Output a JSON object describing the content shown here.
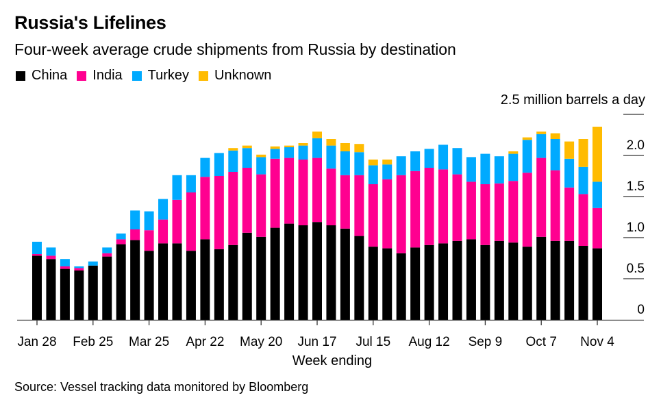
{
  "chart_data": {
    "type": "bar",
    "stacked": true,
    "title": "Russia's Lifelines",
    "subtitle": "Four-week average crude shipments from Russia by destination",
    "ylabel": "2.5 million barrels a day",
    "xlabel": "Week ending",
    "source": "Source: Vessel tracking data monitored by Bloomberg",
    "ylim": [
      0,
      2.5
    ],
    "yticks": [
      {
        "value": 2.5,
        "label": ""
      },
      {
        "value": 2.0,
        "label": "2.0"
      },
      {
        "value": 1.5,
        "label": "1.5"
      },
      {
        "value": 1.0,
        "label": "1.0"
      },
      {
        "value": 0.5,
        "label": "0.5"
      },
      {
        "value": 0,
        "label": "0"
      }
    ],
    "xtick_labels": [
      {
        "index": 0,
        "label": "Jan 28"
      },
      {
        "index": 4,
        "label": "Feb 25"
      },
      {
        "index": 8,
        "label": "Mar 25"
      },
      {
        "index": 12,
        "label": "Apr 22"
      },
      {
        "index": 16,
        "label": "May 20"
      },
      {
        "index": 20,
        "label": "Jun 17"
      },
      {
        "index": 24,
        "label": "Jul 15"
      },
      {
        "index": 28,
        "label": "Aug 12"
      },
      {
        "index": 32,
        "label": "Sep 9"
      },
      {
        "index": 36,
        "label": "Oct 7"
      },
      {
        "index": 40,
        "label": "Nov 4"
      }
    ],
    "grid": false,
    "legend_position": "top-left",
    "categories": [
      "Jan 28",
      "Feb 4",
      "Feb 11",
      "Feb 18",
      "Feb 25",
      "Mar 4",
      "Mar 11",
      "Mar 18",
      "Mar 25",
      "Apr 1",
      "Apr 8",
      "Apr 15",
      "Apr 22",
      "Apr 29",
      "May 6",
      "May 13",
      "May 20",
      "May 27",
      "Jun 3",
      "Jun 10",
      "Jun 17",
      "Jun 24",
      "Jul 1",
      "Jul 8",
      "Jul 15",
      "Jul 22",
      "Jul 29",
      "Aug 5",
      "Aug 12",
      "Aug 19",
      "Aug 26",
      "Sep 2",
      "Sep 9",
      "Sep 16",
      "Sep 23",
      "Sep 30",
      "Oct 7",
      "Oct 14",
      "Oct 21",
      "Oct 28",
      "Nov 4"
    ],
    "series": [
      {
        "name": "China",
        "color": "#000000",
        "values": [
          0.78,
          0.74,
          0.62,
          0.6,
          0.66,
          0.77,
          0.92,
          0.97,
          0.84,
          0.93,
          0.93,
          0.84,
          0.98,
          0.86,
          0.91,
          1.06,
          1.01,
          1.12,
          1.17,
          1.15,
          1.19,
          1.15,
          1.11,
          1.02,
          0.89,
          0.87,
          0.81,
          0.88,
          0.91,
          0.93,
          0.96,
          0.98,
          0.91,
          0.96,
          0.94,
          0.89,
          1.01,
          0.96,
          0.96,
          0.9,
          0.87
        ]
      },
      {
        "name": "India",
        "color": "#ff0090",
        "values": [
          0.02,
          0.04,
          0.03,
          0.03,
          0.0,
          0.04,
          0.06,
          0.13,
          0.25,
          0.29,
          0.53,
          0.71,
          0.76,
          0.89,
          0.89,
          0.79,
          0.76,
          0.84,
          0.8,
          0.8,
          0.78,
          0.69,
          0.65,
          0.74,
          0.76,
          0.84,
          0.95,
          0.93,
          0.94,
          0.9,
          0.81,
          0.7,
          0.74,
          0.7,
          0.75,
          0.9,
          0.96,
          0.86,
          0.65,
          0.63,
          0.49
        ]
      },
      {
        "name": "Turkey",
        "color": "#00aaff",
        "values": [
          0.15,
          0.1,
          0.09,
          0.02,
          0.05,
          0.07,
          0.07,
          0.23,
          0.23,
          0.25,
          0.3,
          0.21,
          0.23,
          0.28,
          0.26,
          0.24,
          0.21,
          0.12,
          0.13,
          0.17,
          0.24,
          0.28,
          0.29,
          0.28,
          0.23,
          0.18,
          0.23,
          0.24,
          0.23,
          0.3,
          0.32,
          0.3,
          0.37,
          0.33,
          0.33,
          0.4,
          0.29,
          0.38,
          0.35,
          0.33,
          0.32
        ]
      },
      {
        "name": "Unknown",
        "color": "#ffbb00",
        "values": [
          0,
          0,
          0,
          0,
          0,
          0,
          0,
          0,
          0,
          0,
          0,
          0,
          0,
          0,
          0.03,
          0.03,
          0.03,
          0.03,
          0.02,
          0.03,
          0.08,
          0.08,
          0.1,
          0.1,
          0.07,
          0.06,
          0,
          0,
          0,
          0,
          0,
          0,
          0,
          0,
          0.03,
          0.03,
          0.03,
          0.07,
          0.21,
          0.34,
          0.67
        ]
      }
    ]
  }
}
